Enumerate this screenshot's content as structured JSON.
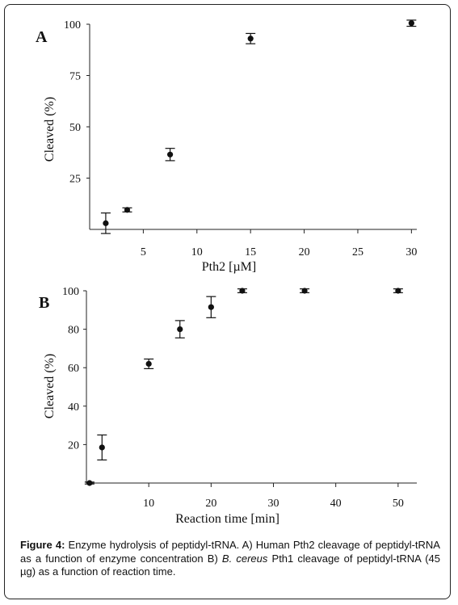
{
  "chart_data": [
    {
      "type": "scatter",
      "panel_label": "A",
      "xlabel": "Pth2 [µM]",
      "ylabel": "Cleaved (%)",
      "xlim": [
        0,
        30.5
      ],
      "ylim": [
        0,
        100
      ],
      "xticks": [
        5,
        10,
        15,
        20,
        25,
        30
      ],
      "yticks": [
        25,
        50,
        75,
        100
      ],
      "grid": false,
      "error_bars": true,
      "points": [
        {
          "x": 1.5,
          "y": 3,
          "err": 5
        },
        {
          "x": 3.5,
          "y": 9.5,
          "err": 1
        },
        {
          "x": 7.5,
          "y": 36.5,
          "err": 3
        },
        {
          "x": 15,
          "y": 93,
          "err": 2.5
        },
        {
          "x": 30,
          "y": 100.5,
          "err": 1.5
        }
      ]
    },
    {
      "type": "scatter",
      "panel_label": "B",
      "xlabel": "Reaction time [min]",
      "ylabel": "Cleaved (%)",
      "xlim": [
        0,
        53
      ],
      "ylim": [
        0,
        100
      ],
      "xticks": [
        10,
        20,
        30,
        40,
        50
      ],
      "yticks": [
        20,
        40,
        60,
        80,
        100
      ],
      "grid": false,
      "error_bars": true,
      "points": [
        {
          "x": 0.5,
          "y": 0,
          "err": 0.5
        },
        {
          "x": 2.5,
          "y": 18.5,
          "err": 6.5
        },
        {
          "x": 10,
          "y": 62,
          "err": 2.5
        },
        {
          "x": 15,
          "y": 80,
          "err": 4.5
        },
        {
          "x": 20,
          "y": 91.5,
          "err": 5.5
        },
        {
          "x": 25,
          "y": 100,
          "err": 1
        },
        {
          "x": 35,
          "y": 100,
          "err": 1
        },
        {
          "x": 50,
          "y": 100,
          "err": 1
        }
      ]
    }
  ],
  "caption": {
    "figure_label": "Figure 4:",
    "text_1": " Enzyme hydrolysis of peptidyl-tRNA.  A) Human Pth2 cleavage of peptidyl-tRNA as a function of enzyme concentration B) ",
    "italic": "B. cereus",
    "text_2": " Pth1 cleavage of peptidyl-tRNA (45 µg) as a function of reaction time."
  }
}
